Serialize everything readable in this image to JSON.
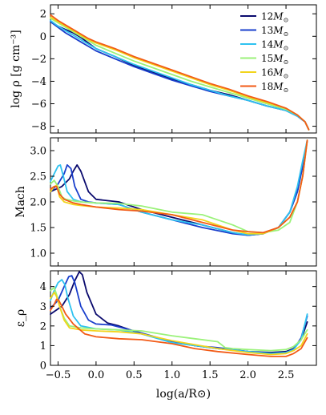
{
  "chart_data": {
    "type": "line",
    "layout": "3 vertically stacked panels sharing the x axis",
    "xlabel": "log(a/R⊙)",
    "xlim": [
      -0.6,
      2.9
    ],
    "xticks": [
      -0.5,
      0.0,
      0.5,
      1.0,
      1.5,
      2.0,
      2.5
    ],
    "xtick_labels": [
      "−0.5",
      "0.0",
      "0.5",
      "1.0",
      "1.5",
      "2.0",
      "2.5"
    ],
    "legend": {
      "placement": "top-right of top panel",
      "entries": [
        {
          "sub": "12",
          "color": "#0b0b6e"
        },
        {
          "sub": "13",
          "color": "#1a3fcc"
        },
        {
          "sub": "14",
          "color": "#2ec2f0"
        },
        {
          "sub": "15",
          "color": "#9bf27a"
        },
        {
          "sub": "16",
          "color": "#f2d41c"
        },
        {
          "sub": "18",
          "color": "#f25a16"
        }
      ],
      "unit_symbol": "M",
      "unit_sub": "⊙"
    },
    "panels": [
      {
        "name": "density",
        "ylabel": "log ρ [g cm⁻³]",
        "ylim": [
          -8.6,
          2.8
        ],
        "yticks": [
          2,
          0,
          -2,
          -4,
          -6,
          -8
        ],
        "ytick_labels": [
          "2",
          "0",
          "−2",
          "−4",
          "−6",
          "−8"
        ],
        "series": [
          {
            "color": "#0b0b6e",
            "x": [
              -0.6,
              -0.5,
              -0.4,
              -0.3,
              -0.2,
              -0.1,
              0.0,
              0.25,
              0.5,
              0.75,
              1.0,
              1.25,
              1.5,
              1.75,
              2.0,
              2.25,
              2.5,
              2.65,
              2.75,
              2.8
            ],
            "y": [
              1.3,
              0.9,
              0.6,
              0.3,
              -0.1,
              -0.6,
              -1.1,
              -1.8,
              -2.6,
              -3.2,
              -3.8,
              -4.3,
              -4.8,
              -5.2,
              -5.7,
              -6.2,
              -6.6,
              -7.1,
              -7.6,
              -8.3
            ]
          },
          {
            "color": "#1a3fcc",
            "x": [
              -0.6,
              -0.5,
              -0.4,
              -0.3,
              -0.2,
              -0.1,
              0.0,
              0.25,
              0.5,
              0.75,
              1.0,
              1.25,
              1.5,
              1.75,
              2.0,
              2.25,
              2.5,
              2.65,
              2.75,
              2.8
            ],
            "y": [
              1.3,
              0.8,
              0.3,
              -0.1,
              -0.5,
              -0.9,
              -1.3,
              -2.0,
              -2.7,
              -3.3,
              -3.9,
              -4.4,
              -4.9,
              -5.3,
              -5.7,
              -6.2,
              -6.6,
              -7.1,
              -7.6,
              -8.3
            ]
          },
          {
            "color": "#2ec2f0",
            "x": [
              -0.6,
              -0.5,
              -0.4,
              -0.3,
              -0.2,
              -0.1,
              0.0,
              0.25,
              0.5,
              0.75,
              1.0,
              1.25,
              1.5,
              1.75,
              2.0,
              2.25,
              2.5,
              2.65,
              2.75,
              2.8
            ],
            "y": [
              1.4,
              0.9,
              0.5,
              0.1,
              -0.3,
              -0.7,
              -1.1,
              -1.8,
              -2.5,
              -3.1,
              -3.7,
              -4.3,
              -4.8,
              -5.3,
              -5.7,
              -6.2,
              -6.6,
              -7.1,
              -7.6,
              -8.3
            ]
          },
          {
            "color": "#9bf27a",
            "x": [
              -0.6,
              -0.5,
              -0.4,
              -0.3,
              -0.2,
              -0.1,
              0.0,
              0.25,
              0.5,
              0.75,
              1.0,
              1.25,
              1.5,
              1.75,
              2.0,
              2.25,
              2.5,
              2.65,
              2.75,
              2.8
            ],
            "y": [
              1.6,
              1.2,
              0.8,
              0.4,
              0.0,
              -0.4,
              -0.8,
              -1.5,
              -2.2,
              -2.8,
              -3.4,
              -4.0,
              -4.5,
              -5.0,
              -5.5,
              -6.0,
              -6.5,
              -7.0,
              -7.6,
              -8.3
            ]
          },
          {
            "color": "#f2d41c",
            "x": [
              -0.6,
              -0.5,
              -0.4,
              -0.3,
              -0.2,
              -0.1,
              0.0,
              0.25,
              0.5,
              0.75,
              1.0,
              1.25,
              1.5,
              1.75,
              2.0,
              2.25,
              2.5,
              2.65,
              2.75,
              2.8
            ],
            "y": [
              1.7,
              1.3,
              0.9,
              0.5,
              0.1,
              -0.3,
              -0.6,
              -1.2,
              -1.9,
              -2.5,
              -3.1,
              -3.7,
              -4.3,
              -4.8,
              -5.4,
              -5.9,
              -6.4,
              -7.0,
              -7.6,
              -8.3
            ]
          },
          {
            "color": "#f25a16",
            "x": [
              -0.6,
              -0.5,
              -0.4,
              -0.3,
              -0.2,
              -0.1,
              0.0,
              0.25,
              0.5,
              0.75,
              1.0,
              1.25,
              1.5,
              1.75,
              2.0,
              2.25,
              2.5,
              2.65,
              2.75,
              2.8
            ],
            "y": [
              1.9,
              1.4,
              1.0,
              0.6,
              0.2,
              -0.2,
              -0.5,
              -1.1,
              -1.8,
              -2.4,
              -3.0,
              -3.6,
              -4.2,
              -4.7,
              -5.3,
              -5.8,
              -6.4,
              -7.0,
              -7.6,
              -8.3
            ]
          }
        ]
      },
      {
        "name": "mach",
        "ylabel": "Mach",
        "ylim": [
          0.75,
          3.25
        ],
        "yticks": [
          1.0,
          1.5,
          2.0,
          2.5,
          3.0
        ],
        "ytick_labels": [
          "1.0",
          "1.5",
          "2.0",
          "2.5",
          "3.0"
        ],
        "series": [
          {
            "color": "#0b0b6e",
            "x": [
              -0.6,
              -0.45,
              -0.35,
              -0.3,
              -0.25,
              -0.2,
              -0.1,
              0.0,
              0.3,
              0.6,
              1.0,
              1.4,
              1.8,
              2.0,
              2.2,
              2.4,
              2.55,
              2.65,
              2.72,
              2.78
            ],
            "y": [
              2.2,
              2.3,
              2.45,
              2.6,
              2.72,
              2.6,
              2.2,
              2.05,
              2.0,
              1.85,
              1.7,
              1.55,
              1.4,
              1.35,
              1.38,
              1.5,
              1.8,
              2.2,
              2.7,
              3.2
            ]
          },
          {
            "color": "#1a3fcc",
            "x": [
              -0.6,
              -0.5,
              -0.42,
              -0.38,
              -0.33,
              -0.28,
              -0.2,
              -0.1,
              0.0,
              0.3,
              0.6,
              1.0,
              1.4,
              1.8,
              2.0,
              2.2,
              2.4,
              2.55,
              2.65,
              2.72,
              2.78
            ],
            "y": [
              2.2,
              2.35,
              2.55,
              2.72,
              2.65,
              2.3,
              2.05,
              2.0,
              1.98,
              1.95,
              1.8,
              1.65,
              1.5,
              1.38,
              1.35,
              1.38,
              1.5,
              1.8,
              2.2,
              2.7,
              3.2
            ]
          },
          {
            "color": "#2ec2f0",
            "x": [
              -0.6,
              -0.55,
              -0.5,
              -0.47,
              -0.43,
              -0.38,
              -0.3,
              -0.2,
              0.0,
              0.3,
              0.6,
              1.0,
              1.4,
              1.8,
              2.0,
              2.2,
              2.4,
              2.55,
              2.65,
              2.72,
              2.78
            ],
            "y": [
              2.4,
              2.55,
              2.7,
              2.72,
              2.5,
              2.2,
              2.05,
              2.0,
              1.98,
              1.95,
              1.8,
              1.65,
              1.55,
              1.4,
              1.36,
              1.38,
              1.5,
              1.8,
              2.3,
              2.8,
              3.2
            ]
          },
          {
            "color": "#9bf27a",
            "x": [
              -0.6,
              -0.55,
              -0.5,
              -0.45,
              -0.4,
              -0.3,
              -0.2,
              0.0,
              0.3,
              0.6,
              1.0,
              1.4,
              1.8,
              2.0,
              2.2,
              2.4,
              2.55,
              2.65,
              2.72,
              2.78
            ],
            "y": [
              2.35,
              2.42,
              2.3,
              2.1,
              2.05,
              2.02,
              2.0,
              1.98,
              1.97,
              1.92,
              1.8,
              1.75,
              1.55,
              1.42,
              1.4,
              1.45,
              1.6,
              2.0,
              2.5,
              3.2
            ]
          },
          {
            "color": "#f2d41c",
            "x": [
              -0.6,
              -0.55,
              -0.52,
              -0.48,
              -0.42,
              -0.3,
              -0.2,
              0.0,
              0.3,
              0.6,
              1.0,
              1.4,
              1.8,
              2.0,
              2.2,
              2.4,
              2.55,
              2.65,
              2.72,
              2.78
            ],
            "y": [
              2.2,
              2.3,
              2.32,
              2.1,
              2.0,
              1.95,
              1.93,
              1.9,
              1.88,
              1.85,
              1.75,
              1.65,
              1.45,
              1.38,
              1.38,
              1.5,
              1.7,
              2.0,
              2.5,
              3.2
            ]
          },
          {
            "color": "#f25a16",
            "x": [
              -0.6,
              -0.55,
              -0.52,
              -0.48,
              -0.42,
              -0.3,
              -0.2,
              0.0,
              0.3,
              0.6,
              1.0,
              1.4,
              1.8,
              2.0,
              2.2,
              2.4,
              2.55,
              2.65,
              2.72,
              2.78
            ],
            "y": [
              2.25,
              2.3,
              2.3,
              2.15,
              2.05,
              1.98,
              1.95,
              1.9,
              1.85,
              1.82,
              1.75,
              1.6,
              1.45,
              1.42,
              1.4,
              1.5,
              1.7,
              2.0,
              2.5,
              3.2
            ]
          }
        ]
      },
      {
        "name": "epsilon",
        "ylabel": "ε_ρ",
        "ylim": [
          0,
          4.8
        ],
        "yticks": [
          0,
          1,
          2,
          3,
          4
        ],
        "ytick_labels": [
          "0",
          "1",
          "2",
          "3",
          "4"
        ],
        "series": [
          {
            "color": "#0b0b6e",
            "x": [
              -0.6,
              -0.45,
              -0.35,
              -0.28,
              -0.22,
              -0.18,
              -0.12,
              0.0,
              0.15,
              0.3,
              0.6,
              1.0,
              1.3,
              1.6,
              2.0,
              2.3,
              2.5,
              2.6,
              2.7,
              2.78
            ],
            "y": [
              2.6,
              3.0,
              3.6,
              4.3,
              4.75,
              4.6,
              3.7,
              2.6,
              2.15,
              2.0,
              1.6,
              1.2,
              1.0,
              0.85,
              0.7,
              0.65,
              0.7,
              0.85,
              1.3,
              2.2
            ]
          },
          {
            "color": "#1a3fcc",
            "x": [
              -0.6,
              -0.5,
              -0.42,
              -0.36,
              -0.32,
              -0.28,
              -0.2,
              -0.1,
              0.0,
              0.2,
              0.5,
              1.0,
              1.3,
              1.6,
              2.0,
              2.3,
              2.5,
              2.6,
              2.7,
              2.78
            ],
            "y": [
              2.9,
              3.3,
              4.0,
              4.5,
              4.55,
              4.2,
              3.0,
              2.3,
              2.1,
              2.05,
              1.75,
              1.2,
              1.0,
              0.9,
              0.7,
              0.6,
              0.65,
              0.8,
              1.4,
              2.5
            ]
          },
          {
            "color": "#2ec2f0",
            "x": [
              -0.6,
              -0.55,
              -0.5,
              -0.45,
              -0.41,
              -0.37,
              -0.3,
              -0.2,
              0.0,
              0.3,
              0.6,
              1.0,
              1.3,
              1.6,
              2.0,
              2.3,
              2.5,
              2.6,
              2.7,
              2.78
            ],
            "y": [
              3.3,
              3.8,
              4.2,
              4.35,
              4.1,
              3.4,
              2.5,
              2.0,
              1.85,
              1.8,
              1.6,
              1.15,
              1.0,
              0.85,
              0.7,
              0.6,
              0.65,
              0.8,
              1.3,
              2.6
            ]
          },
          {
            "color": "#9bf27a",
            "x": [
              -0.6,
              -0.55,
              -0.52,
              -0.48,
              -0.42,
              -0.35,
              -0.2,
              0.0,
              0.3,
              0.6,
              1.0,
              1.3,
              1.6,
              1.7,
              1.8,
              2.0,
              2.3,
              2.5,
              2.6,
              2.7,
              2.78
            ],
            "y": [
              3.8,
              3.95,
              3.6,
              3.0,
              2.4,
              2.0,
              1.9,
              1.85,
              1.8,
              1.75,
              1.5,
              1.35,
              1.2,
              0.9,
              0.85,
              0.8,
              0.75,
              0.8,
              0.95,
              1.3,
              1.8
            ]
          },
          {
            "color": "#f2d41c",
            "x": [
              -0.6,
              -0.55,
              -0.52,
              -0.48,
              -0.42,
              -0.35,
              -0.2,
              0.0,
              0.3,
              0.6,
              1.0,
              1.3,
              1.6,
              2.0,
              2.3,
              2.5,
              2.6,
              2.7,
              2.78
            ],
            "y": [
              3.4,
              3.7,
              3.5,
              3.0,
              2.3,
              1.9,
              1.8,
              1.75,
              1.7,
              1.6,
              1.25,
              1.05,
              0.85,
              0.65,
              0.55,
              0.6,
              0.75,
              1.0,
              1.6
            ]
          },
          {
            "color": "#f25a16",
            "x": [
              -0.6,
              -0.55,
              -0.52,
              -0.49,
              -0.45,
              -0.4,
              -0.3,
              -0.15,
              0.0,
              0.3,
              0.6,
              1.0,
              1.3,
              1.6,
              2.0,
              2.3,
              2.5,
              2.6,
              2.7,
              2.78
            ],
            "y": [
              2.8,
              3.1,
              3.35,
              3.3,
              3.0,
              2.6,
              2.1,
              1.6,
              1.45,
              1.35,
              1.3,
              1.1,
              0.85,
              0.7,
              0.55,
              0.45,
              0.45,
              0.6,
              0.85,
              1.4
            ]
          }
        ]
      }
    ]
  }
}
